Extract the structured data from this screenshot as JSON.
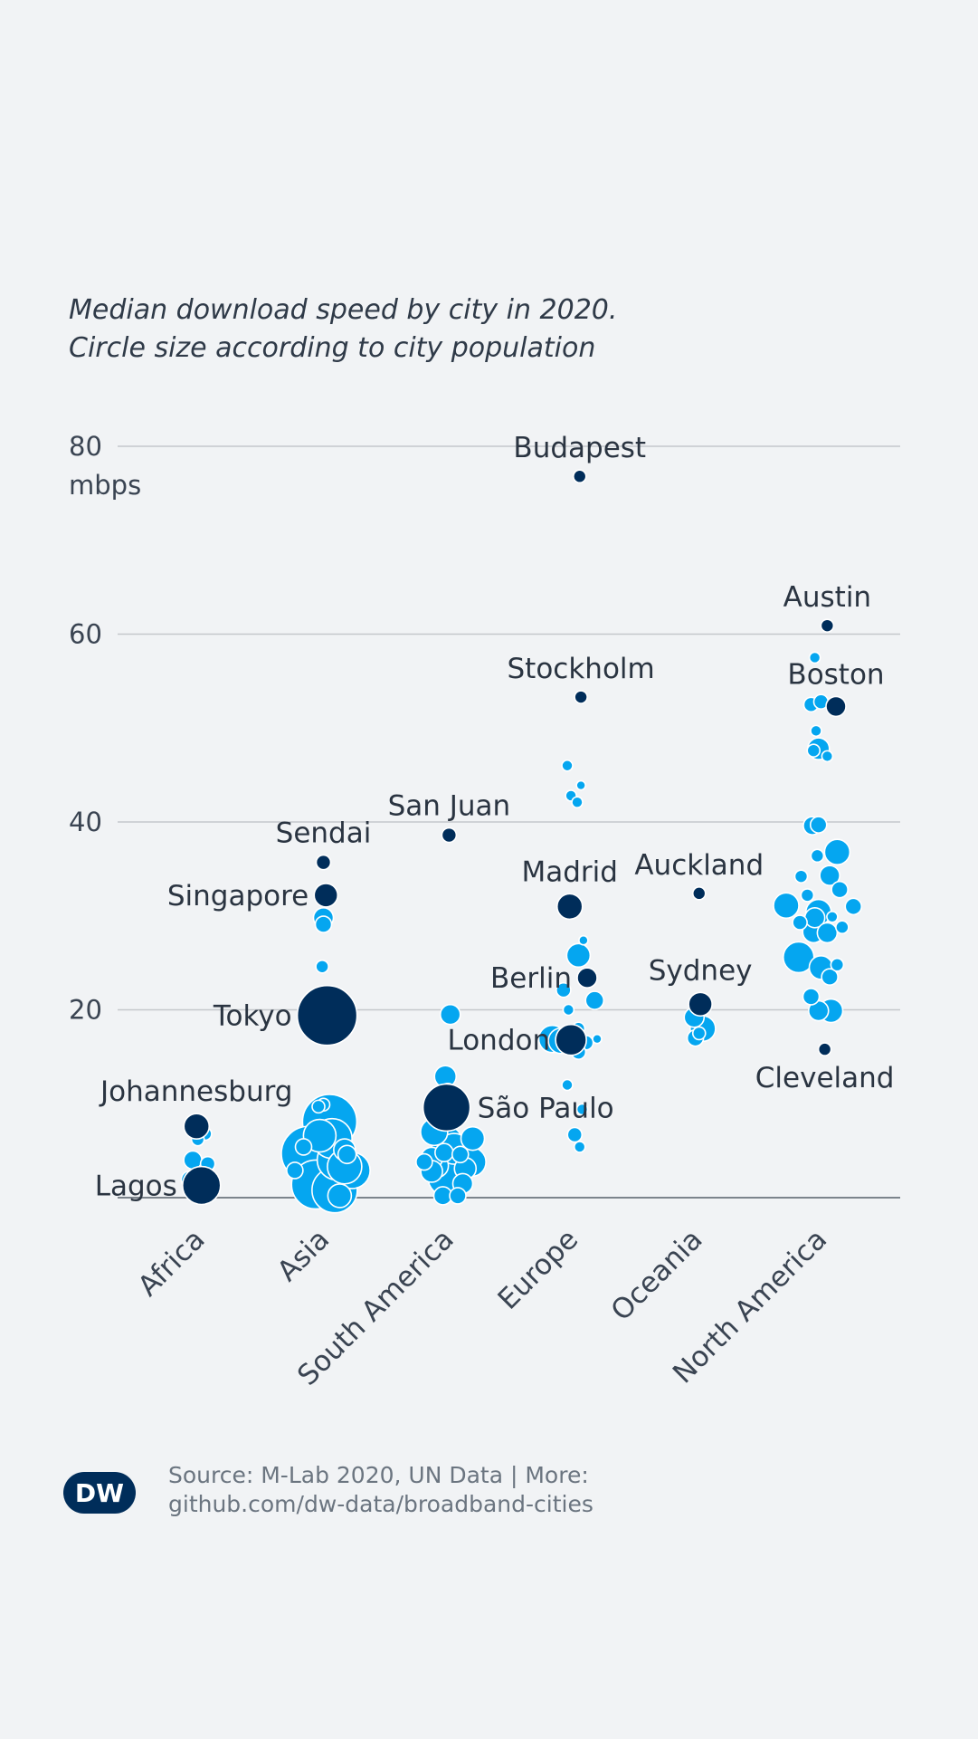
{
  "subtitle": {
    "line1": "Median download speed by city in 2020.",
    "line2": "Circle size according to city population"
  },
  "footer": {
    "source_line1": "Source: M-Lab 2020, UN Data | More:",
    "source_line2": "github.com/dw-data/broadband-cities",
    "logo_text": "DW"
  },
  "colors": {
    "highlight": "#002d5a",
    "bubble": "#05a6f0",
    "gridline": "#c4c8cc",
    "background": "#f1f3f5"
  },
  "chart_data": {
    "type": "scatter",
    "title": "Median download speed by city in 2020.",
    "subtitle": "Circle size according to city population",
    "ylabel": "mbps",
    "ylim": [
      0,
      80
    ],
    "yticks": [
      {
        "value": 80,
        "label": "80",
        "unit": "mbps"
      },
      {
        "value": 60,
        "label": "60"
      },
      {
        "value": 40,
        "label": "40"
      },
      {
        "value": 20,
        "label": "20"
      }
    ],
    "grid": true,
    "categories": [
      "Africa",
      "Asia",
      "South America",
      "Europe",
      "Oceania",
      "North America"
    ],
    "highlighted": [
      {
        "name": "Budapest",
        "category": "Europe",
        "x": 3.06,
        "y": 76.8,
        "r": 7,
        "label_pos": "above"
      },
      {
        "name": "Austin",
        "category": "North America",
        "x": 5.05,
        "y": 60.9,
        "r": 7,
        "label_pos": "above"
      },
      {
        "name": "Stockholm",
        "category": "Europe",
        "x": 3.07,
        "y": 53.3,
        "r": 7,
        "label_pos": "above"
      },
      {
        "name": "Boston",
        "category": "North America",
        "x": 5.12,
        "y": 52.3,
        "r": 11,
        "label_pos": "above"
      },
      {
        "name": "San Juan",
        "category": "South America",
        "x": 2.01,
        "y": 38.6,
        "r": 8,
        "label_pos": "above"
      },
      {
        "name": "Sendai",
        "category": "Asia",
        "x": 1.0,
        "y": 35.7,
        "r": 8,
        "label_pos": "above"
      },
      {
        "name": "Singapore",
        "category": "Asia",
        "x": 1.02,
        "y": 32.2,
        "r": 13,
        "label_pos": "left"
      },
      {
        "name": "Auckland",
        "category": "Oceania",
        "x": 4.02,
        "y": 32.4,
        "r": 7,
        "label_pos": "above"
      },
      {
        "name": "Madrid",
        "category": "Europe",
        "x": 2.98,
        "y": 31.0,
        "r": 14,
        "label_pos": "above"
      },
      {
        "name": "Berlin",
        "category": "Europe",
        "x": 3.12,
        "y": 23.4,
        "r": 11,
        "label_pos": "left"
      },
      {
        "name": "Sydney",
        "category": "Oceania",
        "x": 4.03,
        "y": 20.6,
        "r": 13,
        "label_pos": "above"
      },
      {
        "name": "Tokyo",
        "category": "Asia",
        "x": 1.03,
        "y": 19.4,
        "r": 33,
        "label_pos": "left"
      },
      {
        "name": "London",
        "category": "Europe",
        "x": 2.99,
        "y": 16.8,
        "r": 17,
        "label_pos": "left"
      },
      {
        "name": "Cleveland",
        "category": "North America",
        "x": 5.03,
        "y": 15.8,
        "r": 7,
        "label_pos": "below"
      },
      {
        "name": "São Paulo",
        "category": "South America",
        "x": 1.99,
        "y": 9.6,
        "r": 26,
        "label_pos": "right"
      },
      {
        "name": "Johannesburg",
        "category": "Africa",
        "x": -0.02,
        "y": 7.6,
        "r": 14,
        "label_pos": "above"
      },
      {
        "name": "Lagos",
        "category": "Africa",
        "x": 0.02,
        "y": 1.3,
        "r": 21,
        "label_pos": "left"
      }
    ],
    "other_cities": [
      [
        0.05,
        6.8,
        7
      ],
      [
        -0.01,
        6.2,
        7
      ],
      [
        -0.05,
        4.0,
        10
      ],
      [
        0.07,
        3.6,
        8
      ],
      [
        0.05,
        2.7,
        9
      ],
      [
        -0.07,
        1.9,
        10
      ],
      [
        0.09,
        1.2,
        9
      ],
      [
        -0.05,
        0.9,
        8
      ],
      [
        0.03,
        0.5,
        9
      ],
      [
        1.0,
        9.9,
        7
      ],
      [
        1.05,
        8.1,
        30
      ],
      [
        0.88,
        4.7,
        30
      ],
      [
        0.94,
        1.4,
        27
      ],
      [
        1.09,
        0.8,
        25
      ],
      [
        1.11,
        4.0,
        22
      ],
      [
        1.17,
        3.3,
        19
      ],
      [
        1.23,
        2.9,
        20
      ],
      [
        0.77,
        2.9,
        9
      ],
      [
        1.17,
        5.1,
        12
      ],
      [
        0.97,
        6.6,
        18
      ],
      [
        1.07,
        6.3,
        22
      ],
      [
        1.19,
        4.6,
        10
      ],
      [
        0.99,
        24.6,
        7
      ],
      [
        1.0,
        29.8,
        11
      ],
      [
        1.0,
        29.1,
        9
      ],
      [
        0.84,
        5.4,
        9
      ],
      [
        0.96,
        9.7,
        7
      ],
      [
        1.13,
        0.2,
        13
      ],
      [
        2.02,
        19.5,
        11
      ],
      [
        1.98,
        12.9,
        12
      ],
      [
        2.0,
        11.3,
        9
      ],
      [
        1.89,
        7.0,
        15
      ],
      [
        2.2,
        6.3,
        13
      ],
      [
        1.99,
        6.0,
        17
      ],
      [
        2.05,
        5.2,
        17
      ],
      [
        1.87,
        4.2,
        12
      ],
      [
        2.19,
        3.8,
        16
      ],
      [
        2.0,
        2.2,
        22
      ],
      [
        1.91,
        3.4,
        13
      ],
      [
        1.87,
        2.8,
        12
      ],
      [
        2.14,
        3.1,
        12
      ],
      [
        1.96,
        0.2,
        10
      ],
      [
        2.08,
        0.2,
        9
      ],
      [
        2.1,
        4.6,
        9
      ],
      [
        1.97,
        4.8,
        10
      ],
      [
        1.81,
        3.8,
        9
      ],
      [
        2.12,
        1.5,
        11
      ],
      [
        2.96,
        46.0,
        6
      ],
      [
        3.07,
        43.9,
        5
      ],
      [
        2.99,
        42.8,
        6
      ],
      [
        3.04,
        42.1,
        6
      ],
      [
        3.09,
        27.4,
        5
      ],
      [
        3.05,
        25.8,
        13
      ],
      [
        2.93,
        22.1,
        8
      ],
      [
        3.18,
        21.0,
        10
      ],
      [
        2.97,
        20.0,
        6
      ],
      [
        3.05,
        18.0,
        7
      ],
      [
        3.01,
        17.2,
        9
      ],
      [
        3.11,
        16.5,
        8
      ],
      [
        3.05,
        15.5,
        8
      ],
      [
        2.84,
        16.9,
        15
      ],
      [
        2.91,
        16.7,
        14
      ],
      [
        3.2,
        16.9,
        5
      ],
      [
        2.96,
        12.0,
        6
      ],
      [
        3.08,
        9.4,
        6
      ],
      [
        3.02,
        6.7,
        8
      ],
      [
        3.06,
        5.4,
        6
      ],
      [
        3.98,
        19.2,
        11
      ],
      [
        4.05,
        18.0,
        14
      ],
      [
        3.99,
        17.0,
        9
      ],
      [
        4.02,
        17.5,
        7
      ],
      [
        4.95,
        57.5,
        6
      ],
      [
        4.92,
        52.5,
        8
      ],
      [
        5.0,
        52.8,
        8
      ],
      [
        4.96,
        49.7,
        6
      ],
      [
        4.98,
        47.8,
        12
      ],
      [
        4.94,
        47.6,
        7
      ],
      [
        5.05,
        47.0,
        6
      ],
      [
        4.93,
        39.6,
        10
      ],
      [
        4.98,
        39.7,
        9
      ],
      [
        5.13,
        36.8,
        14
      ],
      [
        4.97,
        36.4,
        7
      ],
      [
        4.84,
        34.2,
        7
      ],
      [
        5.07,
        34.3,
        11
      ],
      [
        5.15,
        32.8,
        9
      ],
      [
        4.89,
        32.2,
        7
      ],
      [
        4.72,
        31.1,
        14
      ],
      [
        5.26,
        31.0,
        9
      ],
      [
        4.98,
        30.4,
        14
      ],
      [
        4.95,
        29.8,
        11
      ],
      [
        5.09,
        29.9,
        6
      ],
      [
        5.17,
        28.8,
        7
      ],
      [
        4.83,
        29.3,
        8
      ],
      [
        4.94,
        28.3,
        12
      ],
      [
        5.05,
        28.2,
        11
      ],
      [
        4.82,
        25.6,
        17
      ],
      [
        5.0,
        24.5,
        13
      ],
      [
        5.13,
        24.8,
        7
      ],
      [
        5.07,
        23.5,
        9
      ],
      [
        4.92,
        21.4,
        9
      ],
      [
        4.98,
        19.9,
        11
      ],
      [
        5.08,
        19.9,
        13
      ]
    ]
  }
}
